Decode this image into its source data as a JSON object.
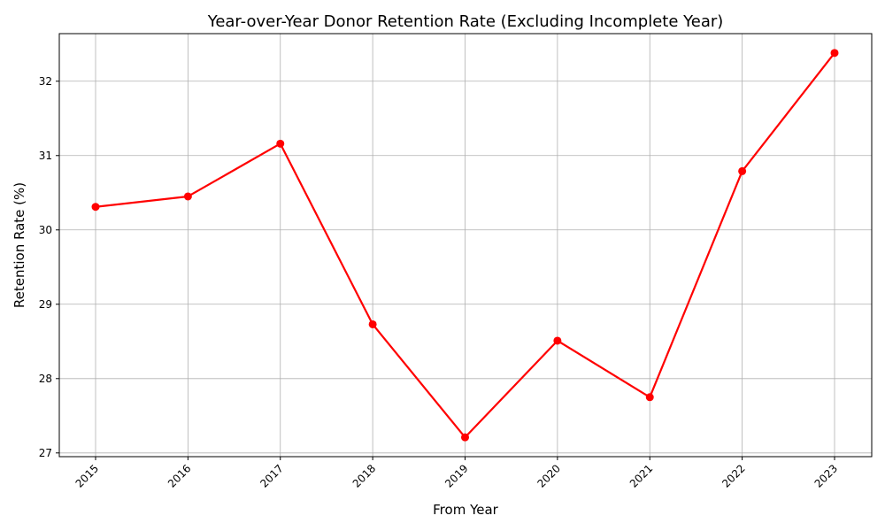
{
  "chart_data": {
    "type": "line",
    "title": "Year-over-Year Donor Retention Rate (Excluding Incomplete Year)",
    "xlabel": "From Year",
    "ylabel": "Retention Rate (%)",
    "categories": [
      "2015",
      "2016",
      "2017",
      "2018",
      "2019",
      "2020",
      "2021",
      "2022",
      "2023"
    ],
    "series": [
      {
        "values": [
          30.31,
          30.45,
          31.16,
          28.73,
          27.21,
          28.51,
          27.75,
          30.79,
          32.38
        ],
        "color": "#ff0000",
        "marker": "circle"
      }
    ],
    "ylim": [
      26.95,
      32.64
    ],
    "yticks": [
      "27",
      "28",
      "29",
      "30",
      "31",
      "32"
    ],
    "xtick_rotation": 45,
    "grid": true,
    "legend": "none"
  }
}
